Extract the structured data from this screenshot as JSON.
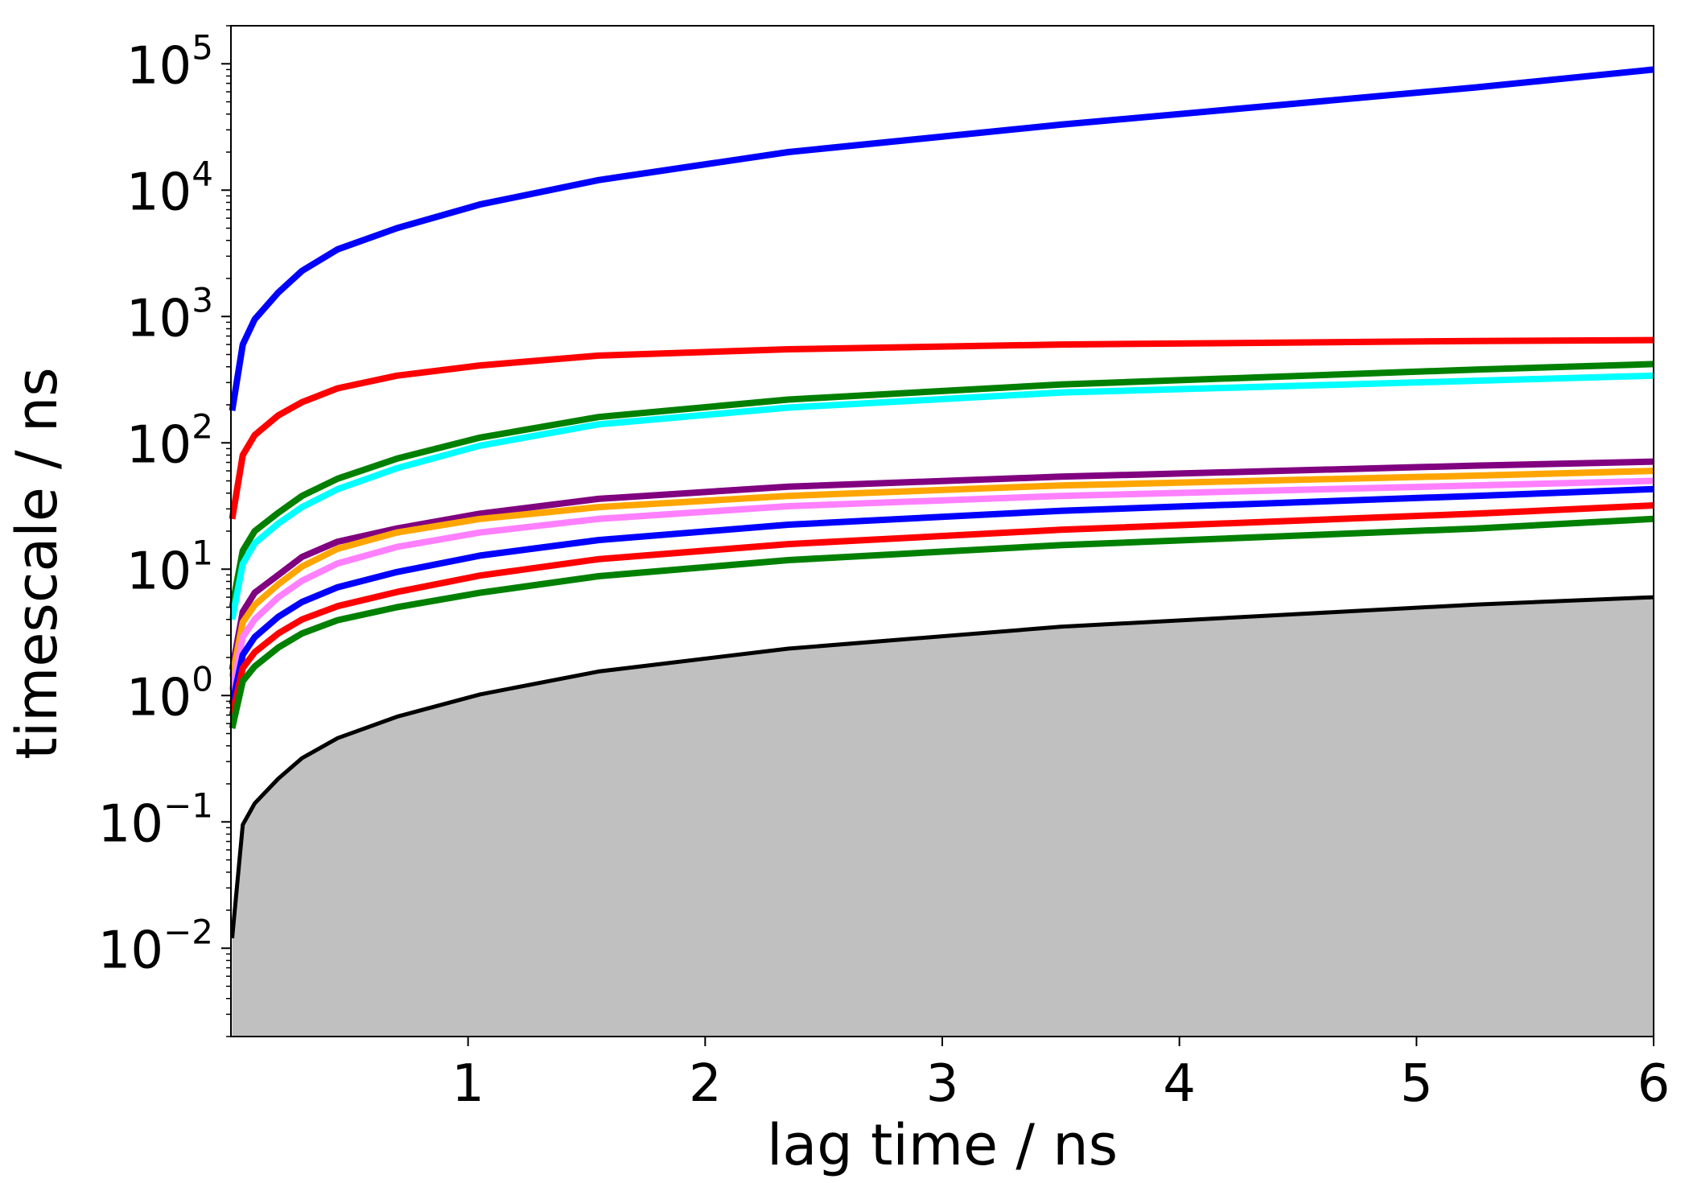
{
  "chart_data": {
    "type": "line",
    "title": "",
    "xlabel": "lag time / ns",
    "ylabel": "timescale / ns",
    "xlim": [
      0,
      6
    ],
    "ylim": [
      0.002,
      200000
    ],
    "yscale": "log",
    "grid": false,
    "legend": "none",
    "x_ticks": [
      {
        "value": 1,
        "label": "1"
      },
      {
        "value": 2,
        "label": "2"
      },
      {
        "value": 3,
        "label": "3"
      },
      {
        "value": 4,
        "label": "4"
      },
      {
        "value": 5,
        "label": "5"
      },
      {
        "value": 6,
        "label": "6"
      }
    ],
    "y_ticks": [
      {
        "value": 0.01,
        "base": "10",
        "exp": "−2"
      },
      {
        "value": 0.1,
        "base": "10",
        "exp": "−1"
      },
      {
        "value": 1,
        "base": "10",
        "exp": "0"
      },
      {
        "value": 10,
        "base": "10",
        "exp": "1"
      },
      {
        "value": 100,
        "base": "10",
        "exp": "2"
      },
      {
        "value": 1000,
        "base": "10",
        "exp": "3"
      },
      {
        "value": 10000,
        "base": "10",
        "exp": "4"
      },
      {
        "value": 100000,
        "base": "10",
        "exp": "5"
      }
    ],
    "x": [
      0.005,
      0.05,
      0.1,
      0.2,
      0.3,
      0.45,
      0.7,
      1.05,
      1.55,
      2.35,
      3.5,
      5.25,
      6
    ],
    "series": [
      {
        "color": "#0000ff",
        "values": [
          180,
          600,
          950,
          1550,
          2300,
          3400,
          5000,
          7700,
          12000,
          20000,
          33000,
          65000,
          90000
        ]
      },
      {
        "color": "#ff0000",
        "values": [
          25,
          80,
          115,
          165,
          210,
          270,
          340,
          410,
          490,
          550,
          600,
          640,
          650
        ]
      },
      {
        "color": "#008000",
        "values": [
          5,
          14,
          20,
          28,
          38,
          52,
          75,
          110,
          160,
          220,
          290,
          380,
          420
        ]
      },
      {
        "color": "#00ffff",
        "values": [
          4,
          11,
          16,
          23,
          31,
          43,
          63,
          95,
          140,
          190,
          250,
          310,
          340
        ]
      },
      {
        "color": "#800080",
        "values": [
          1.6,
          4.6,
          6.5,
          9,
          12.5,
          16.5,
          21,
          27.5,
          36,
          45,
          54,
          66,
          71
        ]
      },
      {
        "color": "#ffa500",
        "values": [
          1.4,
          3.8,
          5.2,
          7.6,
          10.5,
          14.5,
          19.5,
          25,
          31,
          38,
          46,
          55,
          60
        ]
      },
      {
        "color": "#ff80ff",
        "values": [
          1.1,
          2.9,
          4,
          6,
          8.1,
          11.1,
          15,
          19.5,
          25,
          31.5,
          38,
          46,
          50
        ]
      },
      {
        "color": "#0000ff",
        "values": [
          0.85,
          2.1,
          2.9,
          4.2,
          5.5,
          7.2,
          9.5,
          12.8,
          17,
          22.5,
          29,
          38,
          43
        ]
      },
      {
        "color": "#ff0000",
        "values": [
          0.7,
          1.65,
          2.2,
          3.1,
          4,
          5.1,
          6.6,
          8.9,
          12,
          15.8,
          20.5,
          27.5,
          32
        ]
      },
      {
        "color": "#008000",
        "values": [
          0.55,
          1.3,
          1.7,
          2.4,
          3.1,
          3.95,
          5,
          6.5,
          8.8,
          11.8,
          15.5,
          21,
          25
        ]
      },
      {
        "color": "#000000",
        "values": [
          0.012,
          0.095,
          0.14,
          0.22,
          0.32,
          0.46,
          0.68,
          1.02,
          1.55,
          2.35,
          3.5,
          5.25,
          6
        ],
        "fill": "#c0c0c0"
      }
    ]
  }
}
